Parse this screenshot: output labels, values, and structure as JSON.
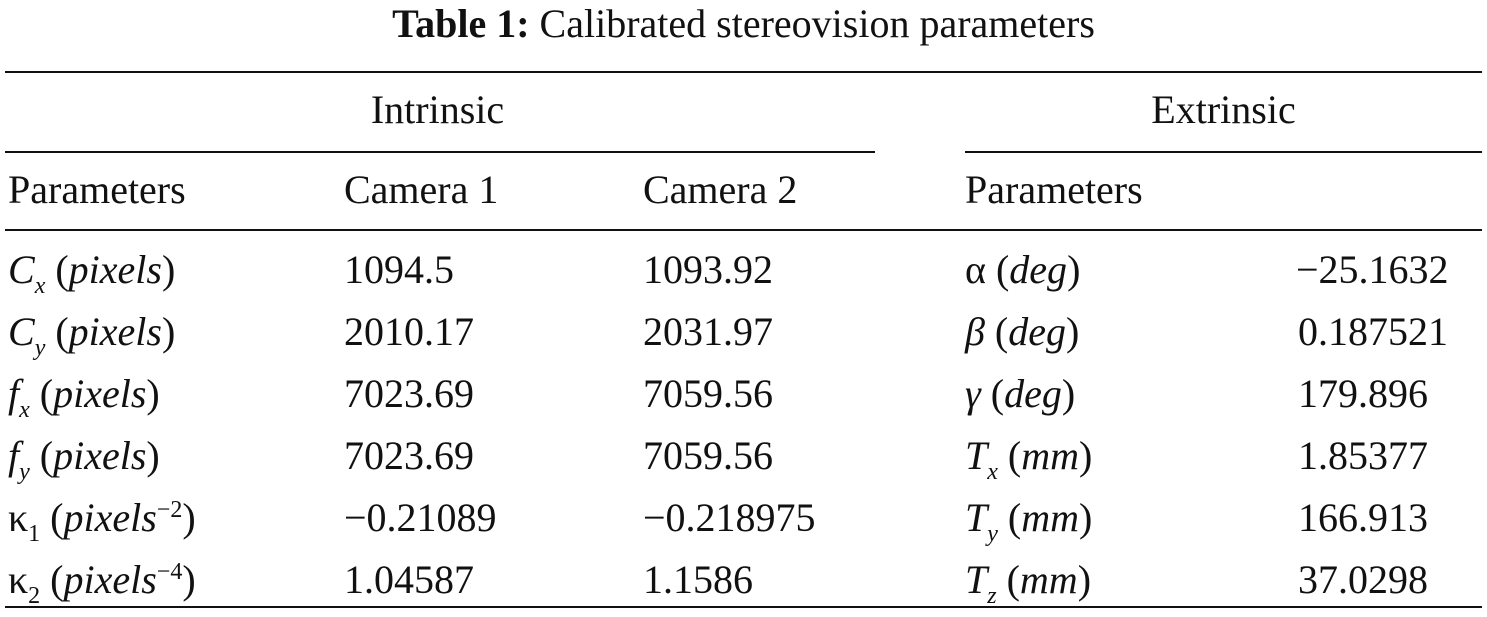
{
  "caption": {
    "label": "Table 1:",
    "text": "Calibrated stereovision parameters"
  },
  "groups": {
    "intrinsic": "Intrinsic",
    "extrinsic": "Extrinsic"
  },
  "headers": {
    "intrinsic_params": "Parameters",
    "camera1": "Camera 1",
    "camera2": "Camera 2",
    "extrinsic_params": "Parameters"
  },
  "intrinsic_rows": [
    {
      "sym": "C",
      "sub": "x",
      "sup": "",
      "unit": "pixels",
      "cam1": "1094.5",
      "cam2": "1093.92"
    },
    {
      "sym": "C",
      "sub": "y",
      "sup": "",
      "unit": "pixels",
      "cam1": "2010.17",
      "cam2": "2031.97"
    },
    {
      "sym": "f",
      "sub": "x",
      "sup": "",
      "unit": "pixels",
      "cam1": "7023.69",
      "cam2": "7059.56"
    },
    {
      "sym": "f",
      "sub": "y",
      "sup": "",
      "unit": "pixels",
      "cam1": "7023.69",
      "cam2": "7059.56"
    },
    {
      "sym": "κ",
      "sub": "1",
      "sup": "−2",
      "unit": "pixels",
      "cam1": "−0.21089",
      "cam2": "−0.218975"
    },
    {
      "sym": "κ",
      "sub": "2",
      "sup": "−4",
      "unit": "pixels",
      "cam1": "1.04587",
      "cam2": "1.1586"
    }
  ],
  "extrinsic_rows": [
    {
      "sym": "α",
      "sub": "",
      "unit": "deg",
      "value": "−25.1632"
    },
    {
      "sym": "β",
      "sub": "",
      "unit": "deg",
      "value": "0.187521"
    },
    {
      "sym": "γ",
      "sub": "",
      "unit": "deg",
      "value": "179.896"
    },
    {
      "sym": "T",
      "sub": "x",
      "unit": "mm",
      "value": "1.85377"
    },
    {
      "sym": "T",
      "sub": "y",
      "unit": "mm",
      "value": "166.913"
    },
    {
      "sym": "T",
      "sub": "z",
      "unit": "mm",
      "value": "37.0298"
    }
  ]
}
